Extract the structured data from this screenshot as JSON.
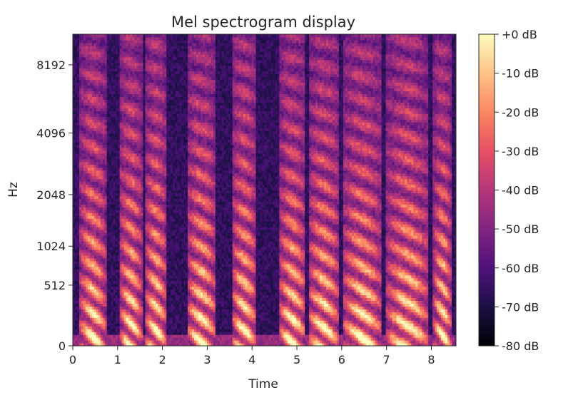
{
  "chart_data": {
    "type": "heatmap",
    "title": "Mel spectrogram display",
    "xlabel": "Time",
    "ylabel": "Hz",
    "x_ticks": [
      0,
      1,
      2,
      3,
      4,
      5,
      6,
      7,
      8
    ],
    "x_tick_labels": [
      "0",
      "1",
      "2",
      "3",
      "4",
      "5",
      "6",
      "7",
      "8"
    ],
    "xlim": [
      0,
      8.55
    ],
    "y_ticks": [
      0,
      512,
      1024,
      2048,
      4096,
      8192
    ],
    "y_tick_labels": [
      "0",
      "512",
      "1024",
      "2048",
      "4096",
      "8192"
    ],
    "y_scale": "mel",
    "ylim": [
      0,
      11025
    ],
    "colormap": "magma",
    "colorbar": {
      "ticks": [
        0,
        -10,
        -20,
        -30,
        -40,
        -50,
        -60,
        -70,
        -80
      ],
      "tick_labels": [
        "+0 dB",
        "-10 dB",
        "-20 dB",
        "-30 dB",
        "-40 dB",
        "-50 dB",
        "-60 dB",
        "-70 dB",
        "-80 dB"
      ],
      "range": [
        -80,
        0
      ]
    },
    "colormap_stops": [
      "#000004",
      "#1c1044",
      "#4f127b",
      "#812581",
      "#b5367a",
      "#e55064",
      "#fb8761",
      "#fec287",
      "#fcfdbf"
    ],
    "voiced_segments": [
      [
        0.15,
        0.75
      ],
      [
        1.05,
        1.55
      ],
      [
        1.62,
        2.1
      ],
      [
        2.55,
        3.2
      ],
      [
        3.55,
        4.1
      ],
      [
        4.6,
        5.2
      ],
      [
        5.25,
        5.95
      ],
      [
        6.02,
        6.9
      ],
      [
        7.0,
        7.95
      ],
      [
        8.05,
        8.45
      ]
    ],
    "grid": false
  }
}
